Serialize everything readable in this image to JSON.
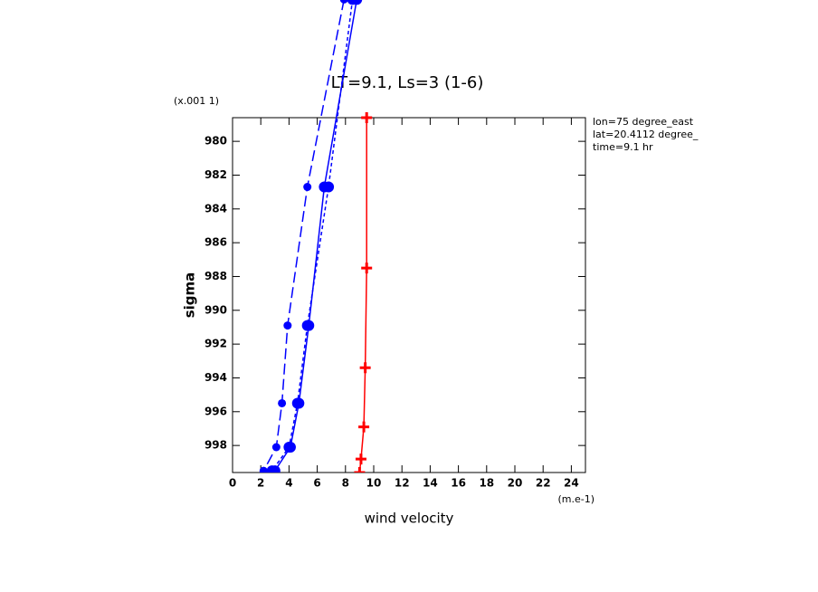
{
  "chart_data": {
    "type": "profile",
    "title": "LT=9.1, Ls=3 (1-6)",
    "x_label": "wind velocity",
    "y_label": "sigma",
    "x_unit": "(m.e-1)",
    "y_unit": "(x.001 1)",
    "annotations": [
      "lon=75 degree_east",
      "lat=20.4112 degree_",
      "time=9.1 hr"
    ],
    "xlim": [
      0,
      25
    ],
    "xticks": [
      0,
      2,
      4,
      6,
      8,
      10,
      12,
      14,
      16,
      18,
      20,
      22,
      24
    ],
    "ylim": [
      999.6,
      978.6
    ],
    "yticks": [
      980,
      982,
      984,
      986,
      988,
      990,
      992,
      994,
      996,
      998
    ],
    "series": [
      {
        "color": "#ff0000",
        "dash": "solid",
        "marker": "cross",
        "x": [
          9.5,
          9.5,
          9.4,
          9.3,
          9.1,
          9.0
        ],
        "y": [
          978.6,
          987.5,
          993.4,
          996.9,
          998.8,
          999.6
        ]
      },
      {
        "color": "#0000ff",
        "dash": "solid",
        "marker": "dot",
        "x": [
          8.8,
          6.5,
          5.4,
          4.7,
          4.1,
          3.0
        ],
        "y": [
          971.6,
          982.7,
          990.9,
          995.5,
          998.1,
          999.5
        ]
      },
      {
        "color": "#0000ff",
        "dash": "short",
        "marker": "dot",
        "x": [
          8.5,
          6.8,
          5.3,
          4.6,
          4.0,
          2.8
        ],
        "y": [
          971.6,
          982.7,
          990.9,
          995.5,
          998.1,
          999.5
        ]
      },
      {
        "color": "#0000ff",
        "dash": "long",
        "marker": "small-dot",
        "x": [
          7.9,
          5.3,
          3.9,
          3.5,
          3.1,
          2.2
        ],
        "y": [
          971.6,
          982.7,
          990.9,
          995.5,
          998.1,
          999.5
        ]
      }
    ]
  }
}
